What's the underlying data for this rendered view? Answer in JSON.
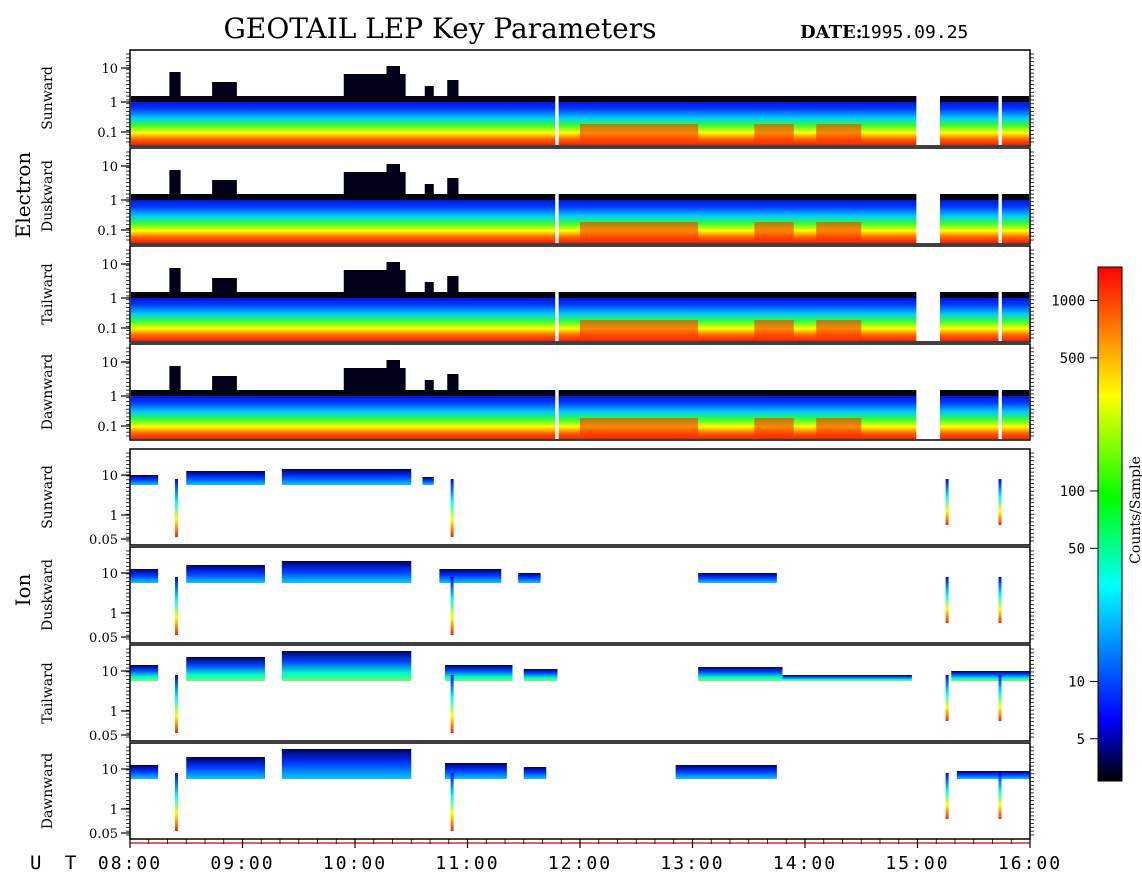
{
  "header": {
    "title": "GEOTAIL LEP Key Parameters",
    "date_label": "DATE:",
    "date_value": "1995.09.25"
  },
  "groups": {
    "electron": "Electron",
    "ion": "Ion"
  },
  "time_axis": {
    "prefix": "U T",
    "ticks": [
      "08:00",
      "09:00",
      "10:00",
      "11:00",
      "12:00",
      "13:00",
      "14:00",
      "15:00",
      "16:00"
    ]
  },
  "colorbar": {
    "label": "Counts/Sample",
    "ticks": [
      "1000",
      "500",
      "100",
      "50",
      "10",
      "5"
    ],
    "scale": "log",
    "range": [
      3,
      1500
    ],
    "palette": [
      "#000000",
      "#0000ff",
      "#00ffff",
      "#00ff00",
      "#ffff00",
      "#ff0000"
    ]
  },
  "chart_data": {
    "type": "heatmap",
    "x_unit": "UT (hours)",
    "x_range": [
      8,
      16
    ],
    "scale": "log",
    "panels": [
      {
        "group": "Electron",
        "label": "Sunward",
        "y_ticks": [
          "10",
          "1",
          "0.1"
        ],
        "y_range": [
          0.05,
          20
        ]
      },
      {
        "group": "Electron",
        "label": "Duskward",
        "y_ticks": [
          "10",
          "1",
          "0.1"
        ],
        "y_range": [
          0.05,
          20
        ]
      },
      {
        "group": "Electron",
        "label": "Tailward",
        "y_ticks": [
          "10",
          "1",
          "0.1"
        ],
        "y_range": [
          0.05,
          20
        ]
      },
      {
        "group": "Electron",
        "label": "Dawnward",
        "y_ticks": [
          "10",
          "1",
          "0.1"
        ],
        "y_range": [
          0.05,
          20
        ]
      },
      {
        "group": "Ion",
        "label": "Sunward",
        "y_ticks": [
          "10",
          "1",
          "0.05"
        ],
        "y_range": [
          0.04,
          30
        ]
      },
      {
        "group": "Ion",
        "label": "Duskward",
        "y_ticks": [
          "10",
          "1",
          "0.05"
        ],
        "y_range": [
          0.04,
          30
        ]
      },
      {
        "group": "Ion",
        "label": "Tailward",
        "y_ticks": [
          "10",
          "1",
          "0.05"
        ],
        "y_range": [
          0.04,
          30
        ]
      },
      {
        "group": "Ion",
        "label": "Dawnward",
        "y_ticks": [
          "10",
          "1",
          "0.05"
        ],
        "y_range": [
          0.04,
          30
        ]
      }
    ],
    "data_gaps_ut": [
      [
        11.78,
        11.81
      ],
      [
        14.99,
        15.2
      ],
      [
        15.72,
        15.75
      ]
    ]
  }
}
